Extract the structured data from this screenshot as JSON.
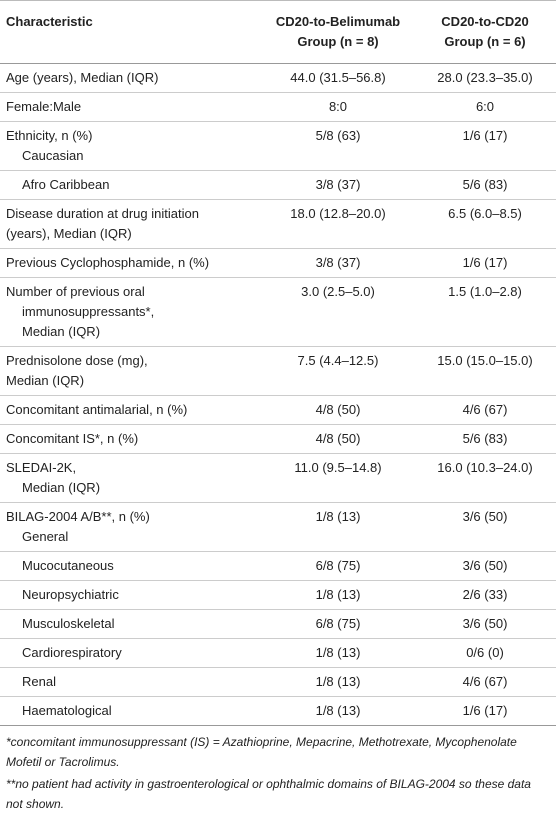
{
  "table": {
    "header": [
      "Characteristic",
      [
        "CD20-to-Belimumab",
        "Group (n = 8)"
      ],
      [
        "CD20-to-CD20",
        "Group (n = 6)"
      ]
    ],
    "rows": [
      {
        "label": [
          "Age (years), Median (IQR)"
        ],
        "values": [
          "44.0 (31.5–56.8)",
          "28.0 (23.3–35.0)"
        ]
      },
      {
        "label": [
          "Female:Male"
        ],
        "values": [
          "8:0",
          "6:0"
        ]
      },
      {
        "label": [
          "Ethnicity, n (%)",
          "Caucasian"
        ],
        "values": [
          "5/8 (63)",
          "1/6 (17)"
        ]
      },
      {
        "label": [
          "Afro Caribbean"
        ],
        "values": [
          "3/8 (37)",
          "5/6 (83)"
        ]
      },
      {
        "label": [
          "Disease duration at drug initiation",
          "(years), Median (IQR)"
        ],
        "values": [
          "18.0 (12.8–20.0)",
          "6.5 (6.0–8.5)"
        ]
      },
      {
        "label": [
          "Previous Cyclophosphamide, n (%)"
        ],
        "values": [
          "3/8 (37)",
          "1/6 (17)"
        ]
      },
      {
        "label": [
          "Number of previous oral",
          "immunosuppressants*,",
          "Median (IQR)"
        ],
        "values": [
          "3.0 (2.5–5.0)",
          "1.5 (1.0–2.8)"
        ]
      },
      {
        "label": [
          "Prednisolone dose (mg),",
          "Median (IQR)"
        ],
        "values": [
          "7.5 (4.4–12.5)",
          "15.0 (15.0–15.0)"
        ]
      },
      {
        "label": [
          "Concomitant antimalarial, n (%)"
        ],
        "values": [
          "4/8 (50)",
          "4/6 (67)"
        ]
      },
      {
        "label": [
          "Concomitant IS*, n (%)"
        ],
        "values": [
          "4/8 (50)",
          "5/6 (83)"
        ]
      },
      {
        "label": [
          "SLEDAI-2K,",
          "Median (IQR)"
        ],
        "values": [
          "11.0 (9.5–14.8)",
          "16.0 (10.3–24.0)"
        ]
      },
      {
        "label": [
          "BILAG-2004 A/B**, n (%)",
          "General"
        ],
        "values": [
          "1/8 (13)",
          "3/6 (50)"
        ]
      },
      {
        "label": [
          "Mucocutaneous"
        ],
        "values": [
          "6/8 (75)",
          "3/6 (50)"
        ]
      },
      {
        "label": [
          "Neuropsychiatric"
        ],
        "values": [
          "1/8 (13)",
          "2/6 (33)"
        ]
      },
      {
        "label": [
          "Musculoskeletal"
        ],
        "values": [
          "6/8 (75)",
          "3/6 (50)"
        ]
      },
      {
        "label": [
          "Cardiorespiratory"
        ],
        "values": [
          "1/8 (13)",
          "0/6 (0)"
        ]
      },
      {
        "label": [
          "Renal"
        ],
        "values": [
          "1/8 (13)",
          "4/6 (67)"
        ]
      },
      {
        "label": [
          "Haematological"
        ],
        "values": [
          "1/8 (13)",
          "1/6 (17)"
        ]
      }
    ]
  },
  "footnotes": [
    "*concomitant immunosuppressant (IS) = Azathioprine, Mepacrine, Methotrexate, Mycophenolate Mofetil or Tacrolimus.",
    "**no patient had activity in gastroenterological or ophthalmic domains of BILAG-2004 so these data not shown."
  ]
}
